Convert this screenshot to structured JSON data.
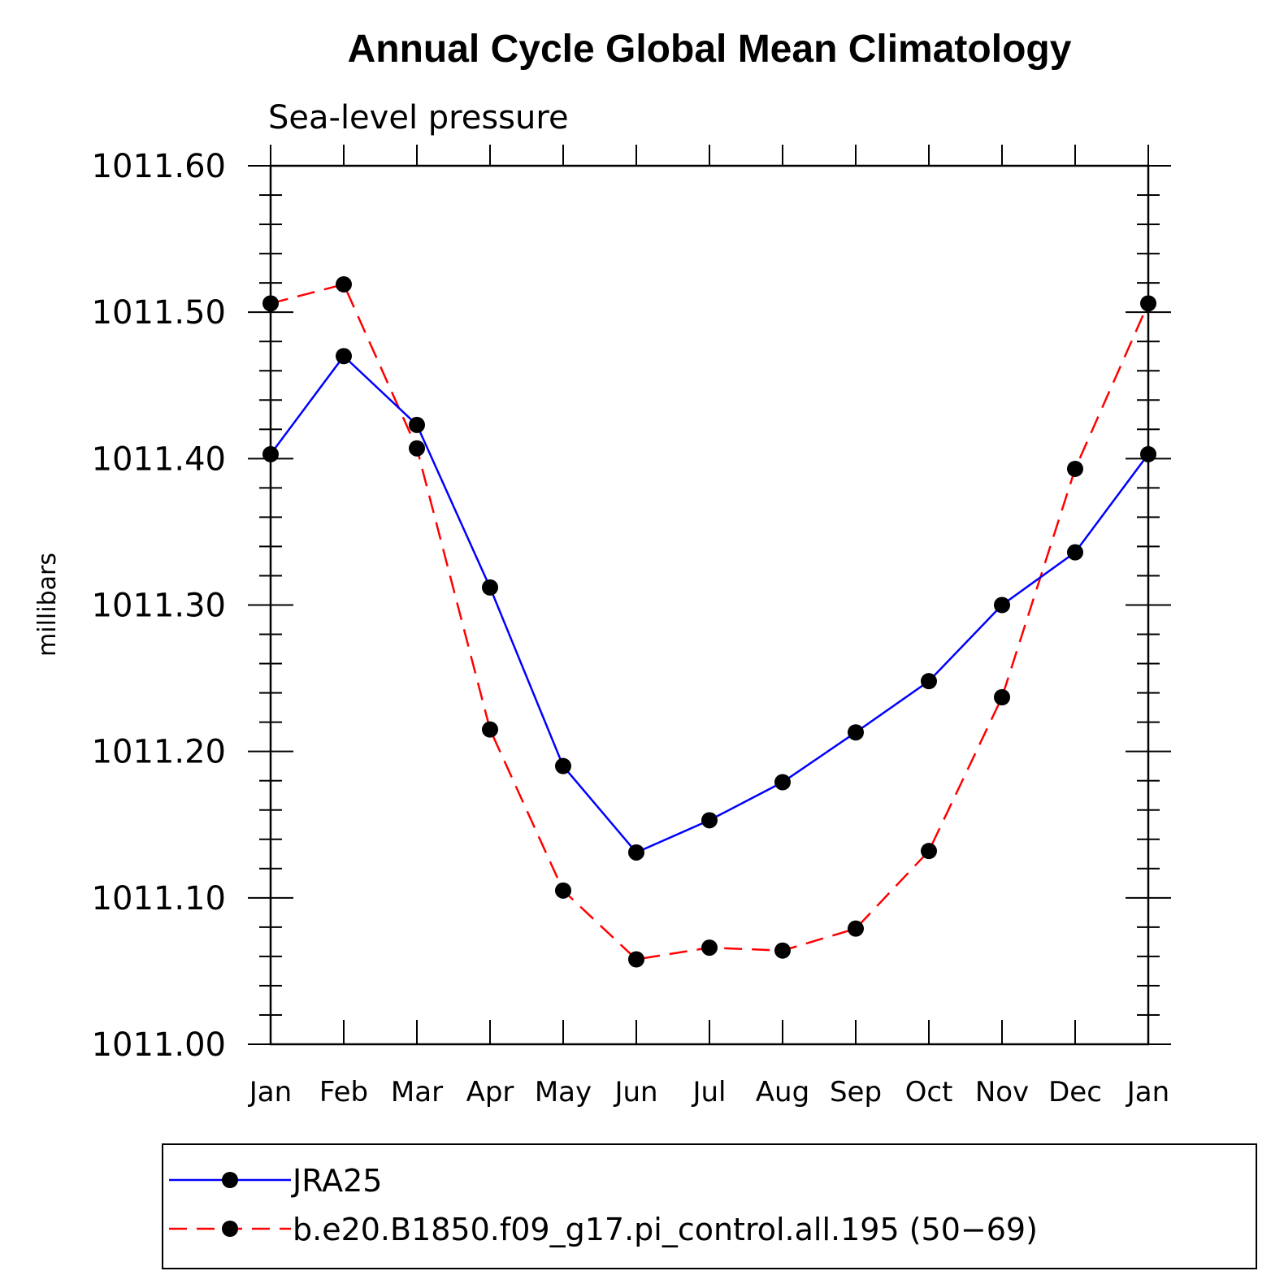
{
  "chart_data": {
    "type": "line",
    "title": "Annual Cycle Global Mean Climatology",
    "subtitle": "Sea-level pressure",
    "ylabel": "millibars",
    "xlabel": "",
    "categories": [
      "Jan",
      "Feb",
      "Mar",
      "Apr",
      "May",
      "Jun",
      "Jul",
      "Aug",
      "Sep",
      "Oct",
      "Nov",
      "Dec",
      "Jan"
    ],
    "ylim": [
      1011.0,
      1011.6
    ],
    "yticks": [
      "1011.00",
      "1011.10",
      "1011.20",
      "1011.30",
      "1011.40",
      "1011.50",
      "1011.60"
    ],
    "grid": false,
    "legend_position": "bottom",
    "series": [
      {
        "name": "JRA25",
        "color": "#0000ff",
        "line_style": "solid",
        "marker": "filled-circle",
        "values": [
          1011.403,
          1011.47,
          1011.423,
          1011.312,
          1011.19,
          1011.131,
          1011.153,
          1011.179,
          1011.213,
          1011.248,
          1011.3,
          1011.336,
          1011.403
        ]
      },
      {
        "name": "b.e20.B1850.f09_g17.pi_control.all.195 (50−69)",
        "color": "#ff0000",
        "line_style": "dashed",
        "marker": "filled-circle",
        "values": [
          1011.506,
          1011.519,
          1011.407,
          1011.215,
          1011.105,
          1011.058,
          1011.066,
          1011.064,
          1011.079,
          1011.132,
          1011.237,
          1011.393,
          1011.506
        ]
      }
    ]
  }
}
